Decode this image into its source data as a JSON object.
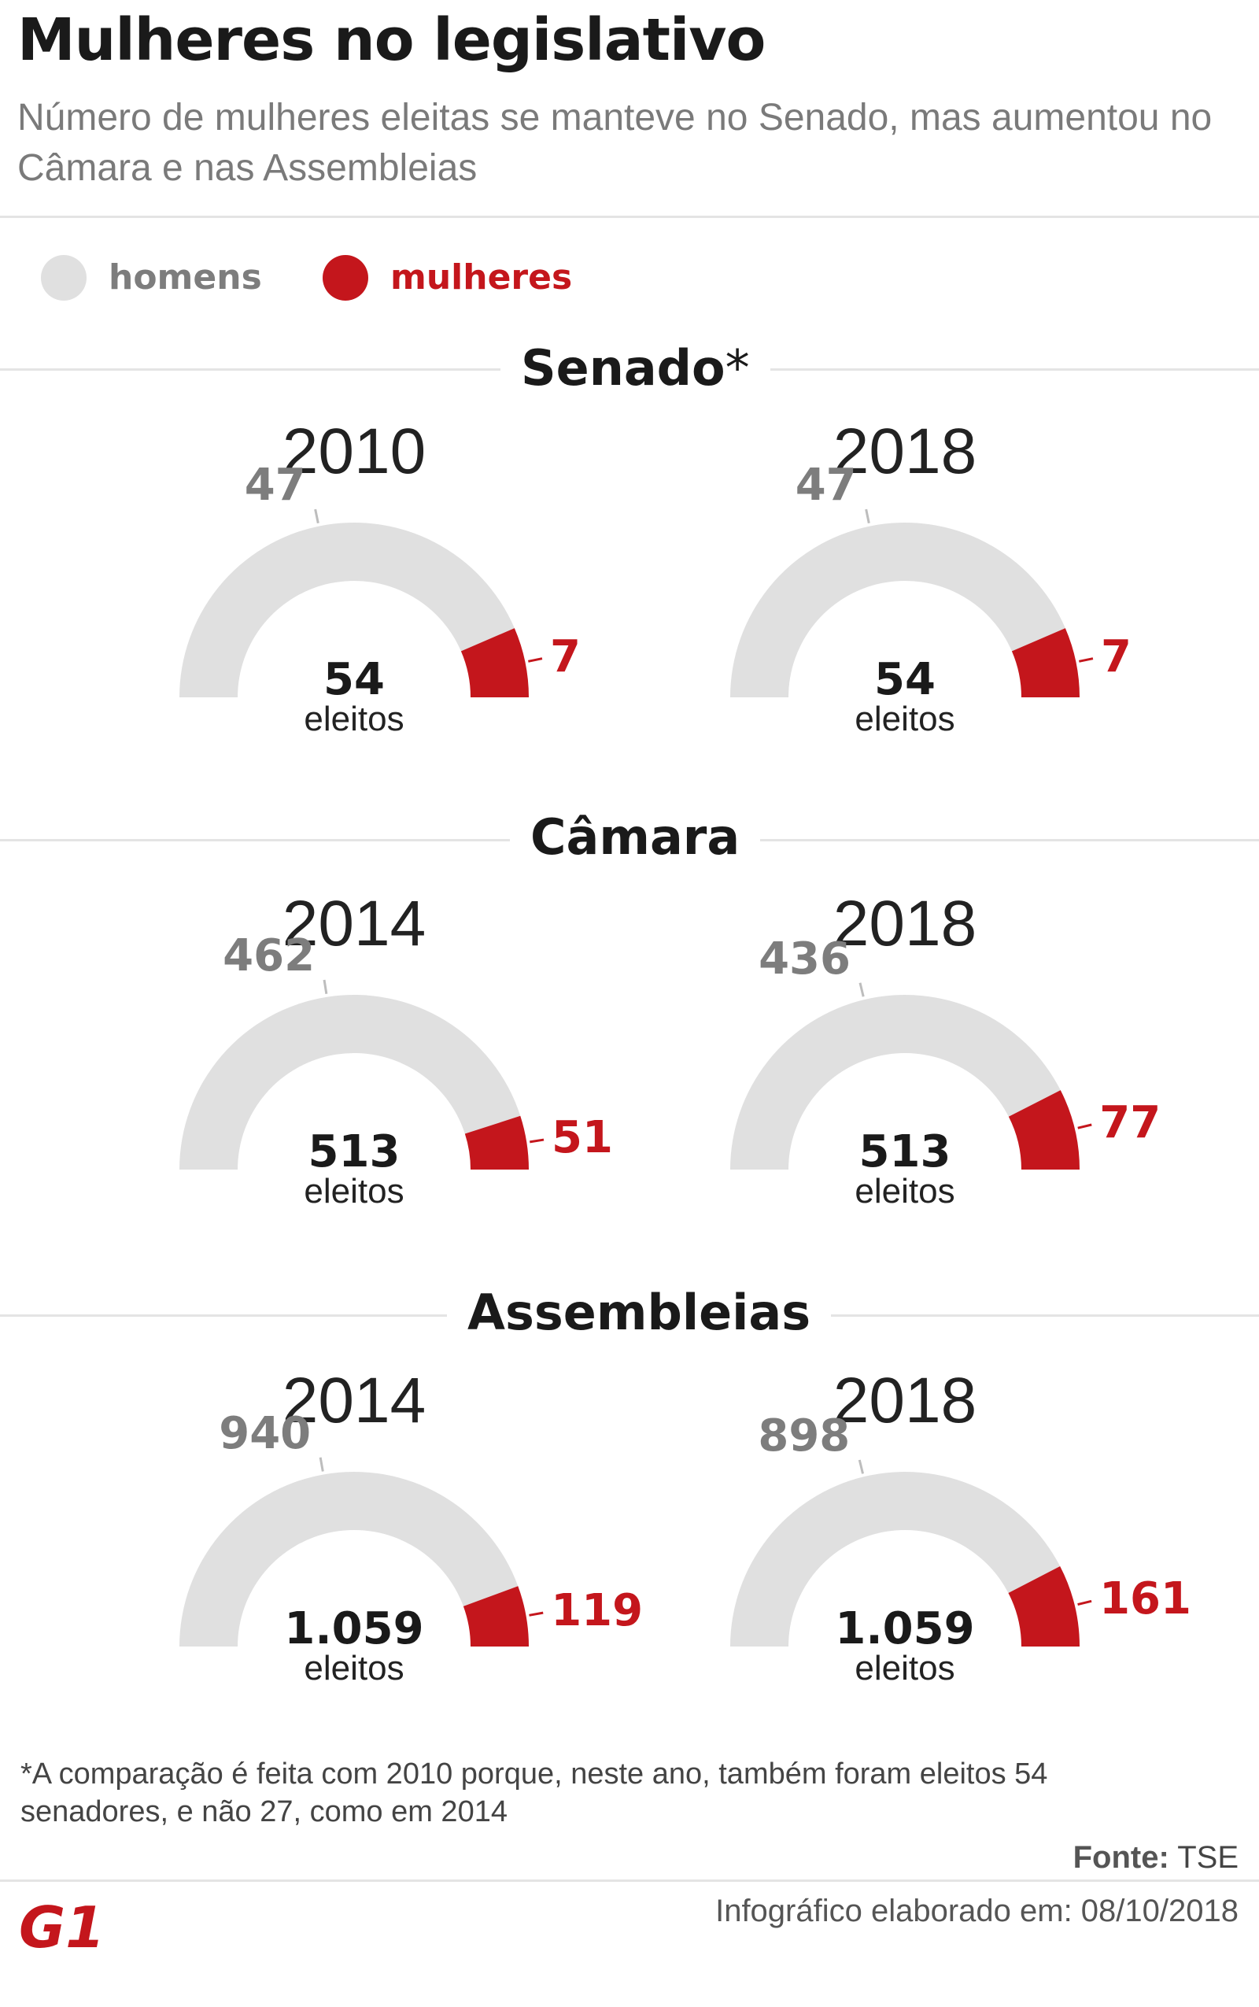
{
  "header": {
    "title": "Mulheres no legislativo",
    "subtitle": "Número de mulheres eleitas se manteve no Senado, mas aumentou no Câmara e nas Assembleias"
  },
  "legend": {
    "men_label": "homens",
    "women_label": "mulheres",
    "men_color": "#e0e0e0",
    "women_color": "#c4161c"
  },
  "chart_data": {
    "type": "semi-donut",
    "unit_label": "eleitos",
    "series_names": [
      "homens",
      "mulheres"
    ],
    "sections": [
      {
        "name": "Senado",
        "asterisk": "*",
        "gauges": [
          {
            "year": "2010",
            "total": 54,
            "total_label": "54",
            "men": 47,
            "men_label": "47",
            "women": 7,
            "women_label": "7"
          },
          {
            "year": "2018",
            "total": 54,
            "total_label": "54",
            "men": 47,
            "men_label": "47",
            "women": 7,
            "women_label": "7"
          }
        ]
      },
      {
        "name": "Câmara",
        "asterisk": "",
        "gauges": [
          {
            "year": "2014",
            "total": 513,
            "total_label": "513",
            "men": 462,
            "men_label": "462",
            "women": 51,
            "women_label": "51"
          },
          {
            "year": "2018",
            "total": 513,
            "total_label": "513",
            "men": 436,
            "men_label": "436",
            "women": 77,
            "women_label": "77"
          }
        ]
      },
      {
        "name": "Assembleias",
        "asterisk": "",
        "gauges": [
          {
            "year": "2014",
            "total": 1059,
            "total_label": "1.059",
            "men": 940,
            "men_label": "940",
            "women": 119,
            "women_label": "119"
          },
          {
            "year": "2018",
            "total": 1059,
            "total_label": "1.059",
            "men": 898,
            "men_label": "898",
            "women": 161,
            "women_label": "161"
          }
        ]
      }
    ]
  },
  "footer": {
    "footnote": "*A comparação é feita com 2010 porque, neste ano, também foram eleitos 54 senadores, e não 27, como em 2014",
    "source_label": "Fonte:",
    "source_value": "TSE",
    "credit": "Infográfico elaborado em: 08/10/2018",
    "logo_text": "G1"
  }
}
